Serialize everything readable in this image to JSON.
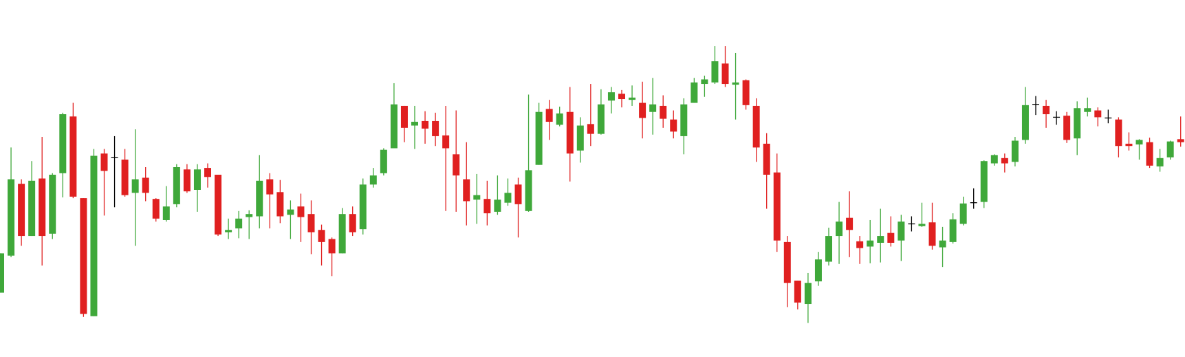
{
  "chart_data": {
    "type": "candlestick",
    "up_color": "#3fa83a",
    "down_color": "#e02020",
    "doji_color": "#000000",
    "ylim": [
      0,
      472
    ],
    "open": [
      85,
      134,
      229,
      160,
      236,
      163,
      243,
      318,
      210,
      54,
      269,
      264,
      261,
      217,
      237,
      209,
      181,
      202,
      248,
      221,
      250,
      241,
      165,
      170,
      185,
      186,
      235,
      218,
      188,
      199,
      189,
      168,
      156,
      137,
      189,
      169,
      228,
      243,
      276,
      332,
      306,
      312,
      312,
      293,
      268,
      235,
      208,
      209,
      192,
      204,
      228,
      193,
      254,
      328,
      307,
      324,
      273,
      308,
      295,
      339,
      348,
      340,
      336,
      324,
      332,
      314,
      292,
      336,
      361,
      363,
      388,
      360,
      366,
      332,
      282,
      244,
      152,
      101,
      70,
      100,
      126,
      160,
      184,
      153,
      146,
      151,
      164,
      154,
      176,
      173,
      178,
      145,
      152,
      176,
      204,
      205,
      256,
      263,
      258,
      287,
      334,
      332,
      317,
      319,
      289,
      324,
      326,
      316,
      314,
      282,
      281,
      284,
      252,
      264,
      288
    ],
    "high": [
      137,
      277,
      235,
      259,
      291,
      243,
      323,
      336,
      210,
      275,
      275,
      292,
      275,
      301,
      251,
      210,
      226,
      255,
      255,
      255,
      256,
      241,
      183,
      193,
      194,
      267,
      243,
      234,
      207,
      216,
      207,
      175,
      158,
      197,
      199,
      236,
      250,
      276,
      362,
      332,
      332,
      325,
      323,
      332,
      326,
      284,
      242,
      233,
      240,
      236,
      237,
      347,
      336,
      340,
      331,
      357,
      317,
      361,
      354,
      357,
      353,
      359,
      364,
      369,
      346,
      326,
      342,
      369,
      372,
      411,
      411,
      402,
      367,
      342,
      296,
      269,
      160,
      101,
      111,
      139,
      171,
      205,
      219,
      160,
      181,
      196,
      186,
      188,
      186,
      204,
      204,
      172,
      190,
      212,
      223,
      260,
      268,
      269,
      291,
      357,
      345,
      340,
      325,
      324,
      338,
      343,
      330,
      327,
      317,
      297,
      288,
      290,
      275,
      286,
      318
    ],
    "low": [
      85,
      132,
      147,
      160,
      121,
      156,
      211,
      210,
      53,
      54,
      187,
      198,
      212,
      147,
      206,
      179,
      179,
      198,
      217,
      192,
      224,
      160,
      156,
      157,
      156,
      170,
      170,
      177,
      156,
      152,
      136,
      121,
      107,
      137,
      160,
      162,
      224,
      240,
      276,
      284,
      275,
      282,
      279,
      193,
      192,
      174,
      176,
      174,
      188,
      200,
      158,
      192,
      254,
      287,
      305,
      232,
      257,
      279,
      294,
      322,
      330,
      332,
      289,
      294,
      303,
      289,
      268,
      336,
      344,
      361,
      357,
      314,
      327,
      258,
      196,
      139,
      66,
      63,
      45,
      94,
      121,
      123,
      132,
      123,
      124,
      125,
      146,
      127,
      166,
      172,
      142,
      119,
      150,
      174,
      196,
      197,
      253,
      244,
      252,
      282,
      320,
      303,
      307,
      283,
      267,
      318,
      305,
      309,
      264,
      273,
      261,
      250,
      245,
      261,
      278
    ],
    "close": [
      137,
      235,
      160,
      233,
      160,
      241,
      321,
      212,
      57,
      266,
      246,
      264,
      214,
      235,
      217,
      183,
      199,
      251,
      219,
      248,
      238,
      162,
      168,
      183,
      189,
      233,
      215,
      186,
      195,
      185,
      165,
      152,
      137,
      189,
      165,
      228,
      240,
      274,
      334,
      303,
      311,
      302,
      292,
      276,
      240,
      206,
      214,
      190,
      208,
      217,
      202,
      247,
      324,
      311,
      322,
      269,
      306,
      295,
      334,
      350,
      341,
      343,
      316,
      334,
      315,
      298,
      334,
      363,
      367,
      391,
      361,
      363,
      333,
      277,
      241,
      154,
      98,
      72,
      98,
      129,
      160,
      179,
      168,
      144,
      154,
      160,
      151,
      179,
      176,
      176,
      147,
      154,
      182,
      203,
      204,
      259,
      267,
      256,
      286,
      333,
      334,
      321,
      317,
      287,
      329,
      329,
      317,
      316,
      279,
      279,
      287,
      253,
      263,
      285,
      284
    ]
  }
}
